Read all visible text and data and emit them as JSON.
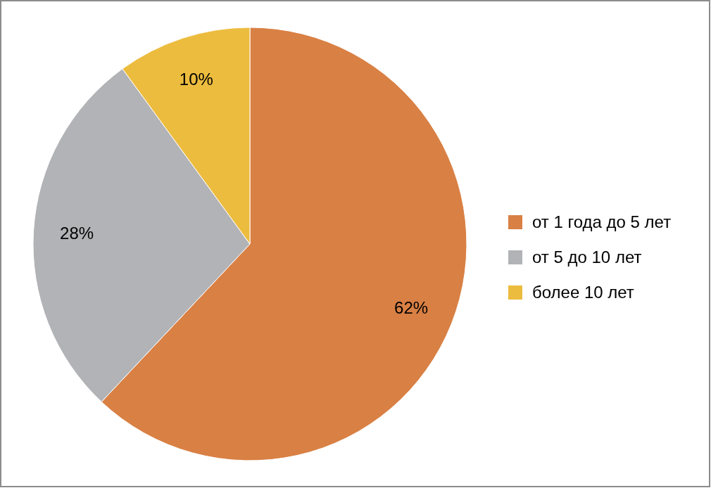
{
  "chart_data": {
    "type": "pie",
    "categories": [
      "от 1 года до 5 лет",
      "от 5 до 10 лет",
      "более 10 лет"
    ],
    "values": [
      62,
      28,
      10
    ],
    "colors": [
      "#d98044",
      "#b2b3b6",
      "#ecbc3e"
    ],
    "value_labels": [
      "62%",
      "28%",
      "10%"
    ],
    "legend": "right"
  }
}
